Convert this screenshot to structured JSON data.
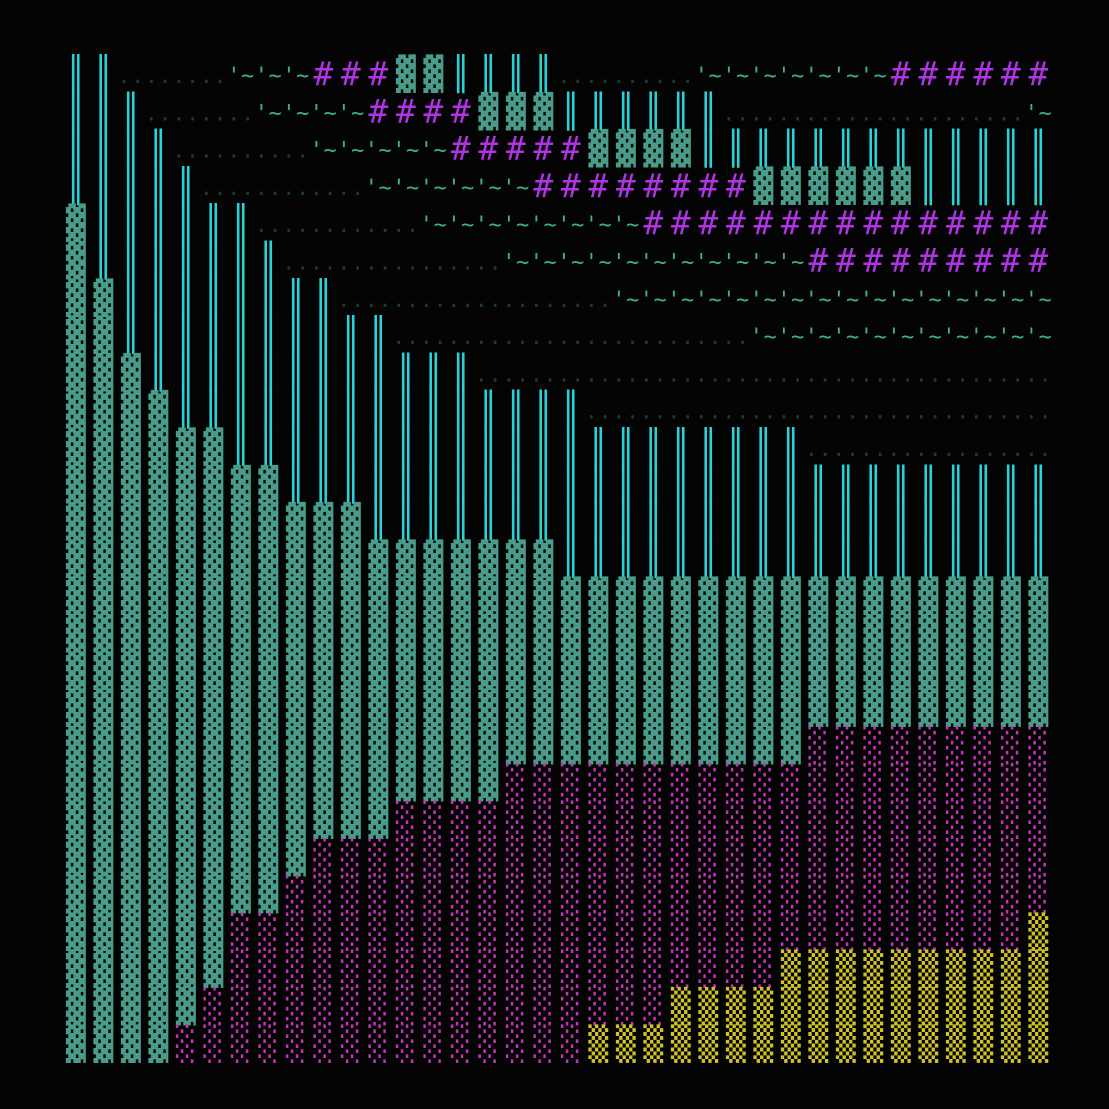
{
  "grid": {
    "palette": {
      "║": "#27d3d6",
      "▓": "#4a9c8a",
      "#": "#b133e6",
      "'": "#3fb088",
      ".": "#1b3a30",
      "░": "#c532b8",
      "▒": "#cfc326"
    },
    "rows": [
      [
        "║║",
        "........",
        "'~'~'~",
        "###",
        "▓▓",
        "║║║║",
        "..........",
        "'~'~'~'~'~'~'~",
        "######"
      ],
      [
        "║║║",
        "........",
        "'~'~'~'~",
        "####",
        "▓▓▓",
        "║║║║║║",
        "......................",
        "'~"
      ],
      [
        "║║║║",
        "..........",
        "'~'~'~'~'~",
        "#####",
        "▓▓▓▓",
        "║║║║║║║║║║║║║"
      ],
      [
        "║║║║║",
        "............",
        "'~'~'~'~'~'~",
        "########",
        "▓▓▓▓▓▓",
        "║║║║║"
      ],
      [
        "▓",
        "║║║║║║",
        "............",
        "'~'~'~'~'~'~'~'~",
        "###############"
      ],
      [
        "▓",
        "║║║║║║║",
        "................",
        "'~'~'~'~'~'~'~'~'~'~'~",
        "#########"
      ],
      [
        "▓▓",
        "║║║║║║║║",
        "....................",
        "'~'~'~'~'~'~'~'~'~'~'~'~'~'~'~'~"
      ],
      [
        "▓▓",
        "║║║║║║║║║║",
        "..........................",
        "'~'~'~'~'~'~'~'~'~'~'~"
      ],
      [
        "▓▓▓",
        "║║║║║║║║║║║║",
        ".........................................."
      ],
      [
        "▓▓▓▓",
        "║║║║║║║║║║║║║║║",
        ".................................."
      ],
      [
        "▓▓▓▓▓▓",
        "║║║║║║║║║║║║║║║║║║║║║",
        ".................."
      ],
      [
        "▓▓▓▓▓▓▓▓",
        "║║║║║║║║║║║║║║║║║║║║║║║║║║║║"
      ],
      [
        "▓▓▓▓▓▓▓▓▓▓▓",
        "║║║║║║║║║║║║║║║║║║║║║║║║║"
      ],
      [
        "▓▓▓▓▓▓▓▓▓▓▓▓▓▓▓▓▓▓",
        "║║║║║║║║║║║║║║║║║║"
      ],
      [
        "▓▓▓▓▓▓▓▓▓▓▓▓▓▓▓▓▓▓▓▓▓▓▓▓▓▓▓▓▓▓▓▓▓▓▓▓"
      ],
      [
        "▓▓▓▓▓▓▓▓▓▓▓▓▓▓▓▓▓▓▓▓▓▓▓▓▓▓▓▓▓▓▓▓▓▓▓▓"
      ],
      [
        "▓▓▓▓▓▓▓▓▓▓▓▓▓▓▓▓▓▓▓▓▓▓▓▓▓▓▓▓▓▓▓▓▓▓▓▓"
      ],
      [
        "▓▓▓▓▓▓▓▓▓▓▓▓▓▓▓▓▓▓▓▓▓▓▓▓▓▓▓▓▓▓▓▓▓▓▓▓"
      ],
      [
        "▓▓▓▓▓▓▓▓▓▓▓▓▓▓▓▓▓▓▓▓▓▓▓▓▓▓▓",
        "░░░░░░░░░"
      ],
      [
        "▓▓▓▓▓▓▓▓▓▓▓▓▓▓▓▓",
        "░░░░░░░░░░░░░░░░░░░░"
      ],
      [
        "▓▓▓▓▓▓▓▓▓▓▓▓",
        "░░░░░░░░░░░░░░░░░░░░░░░░"
      ],
      [
        "▓▓▓▓▓▓▓▓▓",
        "░░░░░░░░░░░░░░░░░░░░░░░░░░░"
      ],
      [
        "▓▓▓▓▓▓▓▓",
        "░░░░░░░░░░░░░░░░░░░░░░░░░░░░"
      ],
      [
        "▓▓▓▓▓▓",
        "░░░░░░░░░░░░░░░░░░░░░░░░░░░░░",
        "▒"
      ],
      [
        "▓▓▓▓▓▓",
        "░░░░░░░░░░░░░░░░░░░░",
        "▒▒▒▒▒▒▒▒▒▒"
      ],
      [
        "▓▓▓▓▓",
        "░░░░░░░░░░░░░░░░░",
        "▒▒▒▒▒▒▒▒▒▒▒▒▒▒"
      ],
      [
        "▓▓▓▓",
        "░░░░░░░░░░░░░░░",
        "▒▒▒▒▒▒▒▒▒▒▒▒▒▒▒▒▒"
      ]
    ]
  }
}
